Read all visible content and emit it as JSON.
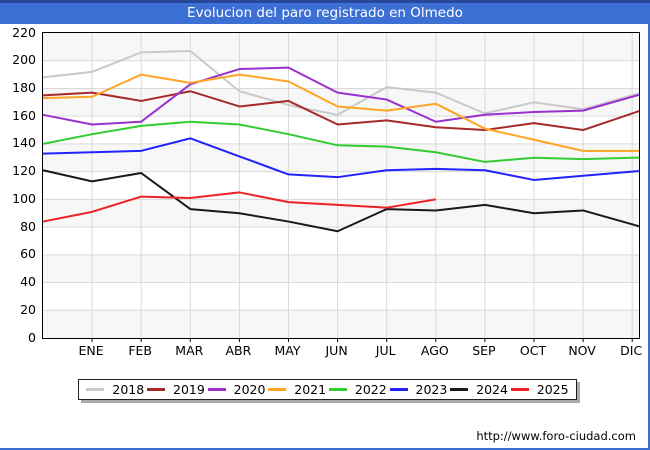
{
  "window": {
    "title": "Evolucion del paro registrado en Olmedo"
  },
  "footer": {
    "url_text": "http://www.foro-ciudad.com"
  },
  "colors": {
    "frame_border": "#3a6ed3",
    "titlebar_bg": "#3c70d4",
    "titlebar_top_edge": "#27479a",
    "titlebar_text": "#ffffff",
    "plot_band": "#f7f7f7",
    "grid_line": "#d9d9d9",
    "axis_box": "#000000",
    "label_text": "#000000",
    "legend_border": "#222222",
    "legend_shadow": "#aaaaaa"
  },
  "chart_data": {
    "type": "line",
    "title": "Evolucion del paro registrado en Olmedo",
    "categories": [
      "ENE",
      "FEB",
      "MAR",
      "ABR",
      "MAY",
      "JUN",
      "JUL",
      "AGO",
      "SEP",
      "OCT",
      "NOV",
      "DIC"
    ],
    "ylim": [
      0,
      220
    ],
    "ytick_step": 20,
    "grid": true,
    "legend_position": "bottom",
    "series": [
      {
        "name": "2018",
        "color": "#c9c9c9",
        "start": 188,
        "values": [
          192,
          206,
          207,
          178,
          168,
          161,
          181,
          177,
          162,
          170,
          165,
          175
        ]
      },
      {
        "name": "2019",
        "color": "#a52a2a",
        "start": 175,
        "values": [
          177,
          171,
          178,
          167,
          171,
          154,
          157,
          152,
          150,
          155,
          150,
          162
        ]
      },
      {
        "name": "2020",
        "color": "#9932cc",
        "start": 161,
        "values": [
          154,
          156,
          183,
          194,
          195,
          177,
          172,
          156,
          161,
          163,
          164,
          174
        ]
      },
      {
        "name": "2021",
        "color": "#ffa424",
        "start": 173,
        "values": [
          174,
          190,
          184,
          190,
          185,
          167,
          164,
          169,
          151,
          143,
          135,
          135
        ]
      },
      {
        "name": "2022",
        "color": "#32cd32",
        "start": 140,
        "values": [
          147,
          153,
          156,
          154,
          147,
          139,
          138,
          134,
          127,
          130,
          129,
          130
        ]
      },
      {
        "name": "2023",
        "color": "#2222ff",
        "start": 133,
        "values": [
          134,
          135,
          144,
          131,
          118,
          116,
          121,
          122,
          121,
          114,
          117,
          120
        ]
      },
      {
        "name": "2024",
        "color": "#1a1a1a",
        "start": 121,
        "values": [
          113,
          119,
          93,
          90,
          84,
          77,
          93,
          92,
          96,
          90,
          92,
          82
        ]
      },
      {
        "name": "2025",
        "color": "#ee2222",
        "start": 84,
        "values": [
          91,
          102,
          101,
          105,
          98,
          96,
          94,
          100
        ]
      }
    ]
  }
}
